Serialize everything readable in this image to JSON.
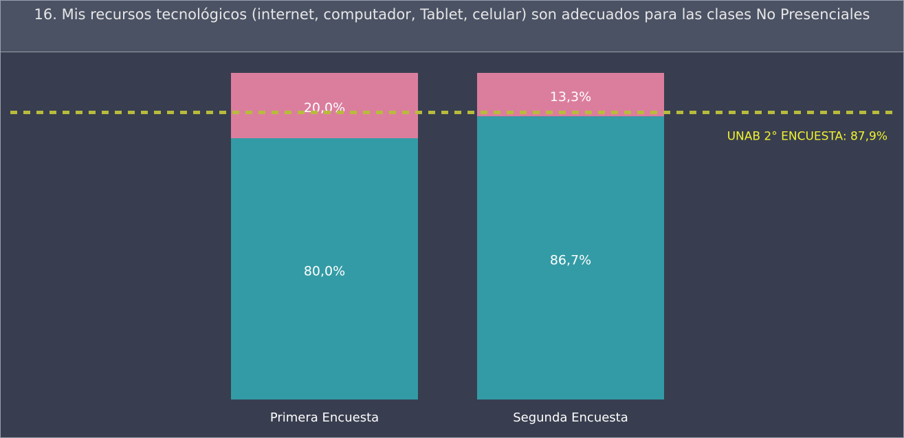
{
  "chart_data": {
    "type": "stacked_bar",
    "title": "16. Mis recursos tecnológicos (internet, computador, Tablet, celular) son adecuados para las clases No Presenciales",
    "categories": [
      "Primera Encuesta",
      "Segunda Encuesta"
    ],
    "series": [
      {
        "color": "#339ba5",
        "values": [
          80.0,
          86.7
        ],
        "value_labels": [
          "80,0%",
          "86,7%"
        ]
      },
      {
        "color": "#db7e9e",
        "values": [
          20.0,
          13.3
        ],
        "value_labels": [
          "20,0%",
          "13,3%"
        ]
      }
    ],
    "ylim": [
      0,
      100
    ],
    "reference_line": {
      "value": 87.9,
      "label": "UNAB 2° ENCUESTA: 87,9%",
      "color": "#b8bb3c",
      "label_color": "#f2f230"
    }
  }
}
